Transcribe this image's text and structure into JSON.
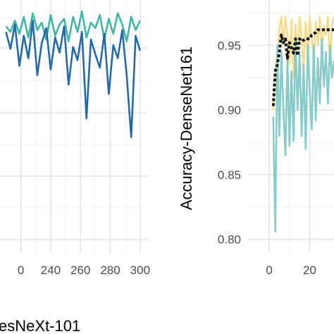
{
  "chart_data": [
    {
      "type": "line",
      "xlabel": "esNeXt-101",
      "ylabel": "",
      "x_ticks": [
        "0",
        "240",
        "260",
        "280",
        "300"
      ],
      "y_ticks": [],
      "xlim": [
        206,
        310
      ],
      "grid": true,
      "legend": "none",
      "series": [
        {
          "color": "#41b6a4",
          "x": [
            210,
            213,
            216,
            219,
            222,
            225,
            228,
            231,
            234,
            237,
            240,
            243,
            246,
            249,
            252,
            255,
            258,
            261,
            264,
            267,
            270,
            273,
            276,
            279,
            282,
            285,
            288,
            291,
            294,
            297,
            300
          ],
          "values": [
            0.961,
            0.958,
            0.964,
            0.957,
            0.966,
            0.955,
            0.968,
            0.959,
            0.963,
            0.954,
            0.967,
            0.956,
            0.962,
            0.965,
            0.953,
            0.966,
            0.958,
            0.969,
            0.955,
            0.963,
            0.96,
            0.967,
            0.954,
            0.965,
            0.957,
            0.968,
            0.962,
            0.953,
            0.966,
            0.959,
            0.964
          ]
        },
        {
          "color": "#2469a9",
          "x": [
            210,
            213,
            216,
            219,
            222,
            225,
            228,
            231,
            234,
            237,
            240,
            243,
            246,
            249,
            252,
            255,
            258,
            261,
            264,
            267,
            270,
            273,
            276,
            279,
            282,
            285,
            288,
            291,
            294,
            297,
            300
          ],
          "values": [
            0.958,
            0.949,
            0.962,
            0.94,
            0.956,
            0.944,
            0.964,
            0.935,
            0.952,
            0.96,
            0.938,
            0.955,
            0.947,
            0.961,
            0.93,
            0.95,
            0.943,
            0.958,
            0.912,
            0.954,
            0.946,
            0.939,
            0.957,
            0.925,
            0.951,
            0.944,
            0.959,
            0.935,
            0.902,
            0.956,
            0.948
          ]
        }
      ]
    },
    {
      "type": "line",
      "xlabel": "",
      "ylabel": "Accuracy-DenseNet161",
      "x_ticks": [
        "0",
        "20"
      ],
      "y_ticks": [
        "0.80",
        "0.85",
        "0.90",
        "0.95"
      ],
      "ylim": [
        0.79,
        0.985
      ],
      "xlim": [
        -7,
        32
      ],
      "grid": true,
      "legend": "none",
      "series": [
        {
          "color": "#f5dd8c",
          "x": [
            2,
            3,
            4,
            5,
            6,
            7,
            8,
            9,
            10,
            11,
            12,
            13,
            14,
            15,
            16,
            17,
            18,
            19,
            20,
            21,
            22,
            23,
            24,
            25,
            26,
            27,
            28,
            29,
            30,
            31,
            32
          ],
          "values": [
            0.9,
            0.93,
            0.945,
            0.962,
            0.972,
            0.95,
            0.972,
            0.958,
            0.935,
            0.97,
            0.925,
            0.966,
            0.945,
            0.972,
            0.955,
            0.93,
            0.968,
            0.94,
            0.972,
            0.955,
            0.938,
            0.968,
            0.95,
            0.972,
            0.945,
            0.965,
            0.958,
            0.972,
            0.935,
            0.966,
            0.972
          ]
        },
        {
          "color": "#86cdc9",
          "x": [
            2,
            3,
            4,
            5,
            6,
            7,
            8,
            9,
            10,
            11,
            12,
            13,
            14,
            15,
            16,
            17,
            18,
            19,
            20,
            21,
            22,
            23,
            24,
            25,
            26,
            27,
            28,
            29,
            30,
            31,
            32
          ],
          "values": [
            0.895,
            0.806,
            0.95,
            0.88,
            0.945,
            0.9,
            0.865,
            0.942,
            0.872,
            0.93,
            0.876,
            0.955,
            0.9,
            0.945,
            0.88,
            0.935,
            0.87,
            0.95,
            0.915,
            0.885,
            0.95,
            0.892,
            0.94,
            0.905,
            0.955,
            0.918,
            0.945,
            0.905,
            0.95,
            0.925,
            0.938
          ]
        },
        {
          "color": "#111111",
          "style": "dotted",
          "x": [
            2,
            3,
            4,
            5,
            6,
            7,
            8,
            9,
            10,
            11,
            12,
            13,
            14,
            15,
            16,
            17,
            18,
            19,
            20,
            21,
            22,
            23,
            24,
            25,
            26,
            27,
            28,
            29,
            30,
            31,
            32
          ],
          "values": [
            0.903,
            0.93,
            0.935,
            0.945,
            0.958,
            0.952,
            0.955,
            0.94,
            0.952,
            0.948,
            0.944,
            0.955,
            0.942,
            0.955,
            0.953,
            0.954,
            0.955,
            0.955,
            0.955,
            0.958,
            0.959,
            0.96,
            0.962,
            0.962,
            0.962,
            0.962,
            0.962,
            0.962,
            0.962,
            0.962,
            0.962
          ]
        }
      ]
    }
  ]
}
